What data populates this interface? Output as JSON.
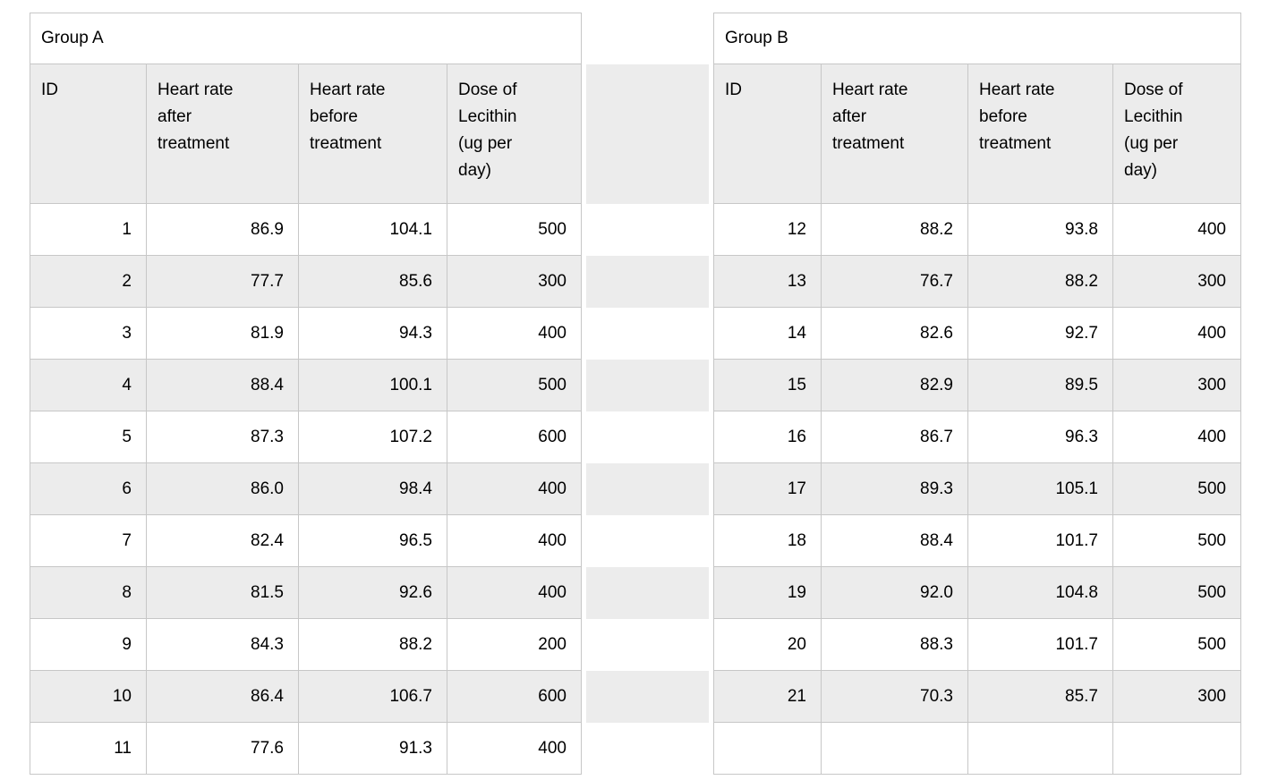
{
  "colors": {
    "page_bg": "#ffffff",
    "header_bg": "#ececec",
    "zebra_bg": "#ececec",
    "border": "#c7c7c7",
    "text": "#000000"
  },
  "chart_data": [
    {
      "type": "table",
      "title": "Group A",
      "columns": [
        "ID",
        "Heart rate\nafter\ntreatment",
        "Heart rate\nbefore\ntreatment",
        "Dose of\nLecithin\n(ug per\nday)"
      ],
      "rows": [
        [
          "1",
          "86.9",
          "104.1",
          "500"
        ],
        [
          "2",
          "77.7",
          "85.6",
          "300"
        ],
        [
          "3",
          "81.9",
          "94.3",
          "400"
        ],
        [
          "4",
          "88.4",
          "100.1",
          "500"
        ],
        [
          "5",
          "87.3",
          "107.2",
          "600"
        ],
        [
          "6",
          "86.0",
          "98.4",
          "400"
        ],
        [
          "7",
          "82.4",
          "96.5",
          "400"
        ],
        [
          "8",
          "81.5",
          "92.6",
          "400"
        ],
        [
          "9",
          "84.3",
          "88.2",
          "200"
        ],
        [
          "10",
          "86.4",
          "106.7",
          "600"
        ],
        [
          "11",
          "77.6",
          "91.3",
          "400"
        ]
      ]
    },
    {
      "type": "table",
      "title": "Group B",
      "columns": [
        "ID",
        "Heart rate\nafter\ntreatment",
        "Heart rate\nbefore\ntreatment",
        "Dose of\nLecithin\n(ug per\nday)"
      ],
      "rows": [
        [
          "12",
          "88.2",
          "93.8",
          "400"
        ],
        [
          "13",
          "76.7",
          "88.2",
          "300"
        ],
        [
          "14",
          "82.6",
          "92.7",
          "400"
        ],
        [
          "15",
          "82.9",
          "89.5",
          "300"
        ],
        [
          "16",
          "86.7",
          "96.3",
          "400"
        ],
        [
          "17",
          "89.3",
          "105.1",
          "500"
        ],
        [
          "18",
          "88.4",
          "101.7",
          "500"
        ],
        [
          "19",
          "92.0",
          "104.8",
          "500"
        ],
        [
          "20",
          "88.3",
          "101.7",
          "500"
        ],
        [
          "21",
          "70.3",
          "85.7",
          "300"
        ],
        [
          "",
          "",
          "",
          ""
        ]
      ]
    }
  ]
}
